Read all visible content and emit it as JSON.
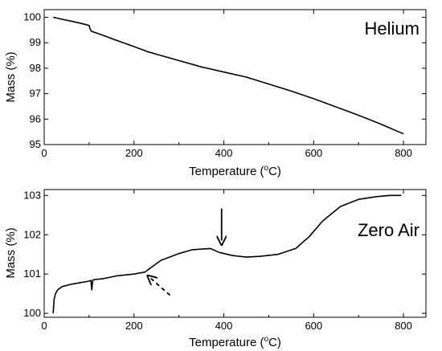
{
  "chart_data": [
    {
      "type": "line",
      "panel_label": "Helium",
      "xlabel": "Temperature (",
      "xlabel_unit": "C)",
      "xlabel_degree": "o",
      "ylabel": "Mass (%)",
      "xlim": [
        0,
        850
      ],
      "ylim": [
        95,
        100.3
      ],
      "xticks": [
        0,
        200,
        400,
        600,
        800
      ],
      "yticks": [
        95,
        96,
        97,
        98,
        99,
        100
      ],
      "grid": false,
      "series": [
        {
          "x": [
            20,
            40,
            60,
            80,
            100,
            102,
            105,
            130,
            160,
            200,
            230,
            240,
            260,
            300,
            350,
            400,
            450,
            500,
            550,
            600,
            650,
            700,
            750,
            800
          ],
          "values": [
            100.0,
            99.92,
            99.85,
            99.77,
            99.68,
            99.55,
            99.45,
            99.3,
            99.1,
            98.85,
            98.65,
            98.6,
            98.5,
            98.3,
            98.05,
            97.85,
            97.65,
            97.38,
            97.1,
            96.8,
            96.48,
            96.15,
            95.8,
            95.42
          ]
        }
      ]
    },
    {
      "type": "line",
      "panel_label": "Zero Air",
      "xlabel": "Temperature (",
      "xlabel_unit": "C)",
      "xlabel_degree": "o",
      "ylabel": "Mass (%)",
      "xlim": [
        0,
        850
      ],
      "ylim": [
        99.9,
        103.15
      ],
      "xticks": [
        0,
        200,
        400,
        600,
        800
      ],
      "yticks": [
        100,
        101,
        102,
        103
      ],
      "grid": false,
      "annotations": [
        {
          "style": "solid-arrow-down",
          "at_x": 395,
          "at_y": 101.85
        },
        {
          "style": "dashed-arrow",
          "at_x": 232,
          "at_y": 100.95
        }
      ],
      "series": [
        {
          "x": [
            20,
            22,
            25,
            30,
            40,
            60,
            80,
            100,
            104,
            106,
            108,
            112,
            130,
            160,
            200,
            225,
            230,
            260,
            300,
            330,
            370,
            390,
            420,
            450,
            480,
            520,
            560,
            590,
            620,
            660,
            700,
            740,
            770,
            795
          ],
          "values": [
            100.0,
            100.35,
            100.5,
            100.6,
            100.68,
            100.74,
            100.78,
            100.82,
            100.84,
            100.6,
            100.84,
            100.86,
            100.88,
            100.95,
            101.0,
            101.05,
            101.1,
            101.35,
            101.52,
            101.62,
            101.65,
            101.55,
            101.47,
            101.43,
            101.45,
            101.5,
            101.65,
            101.95,
            102.35,
            102.72,
            102.9,
            102.97,
            103.0,
            103.0
          ]
        }
      ]
    }
  ]
}
